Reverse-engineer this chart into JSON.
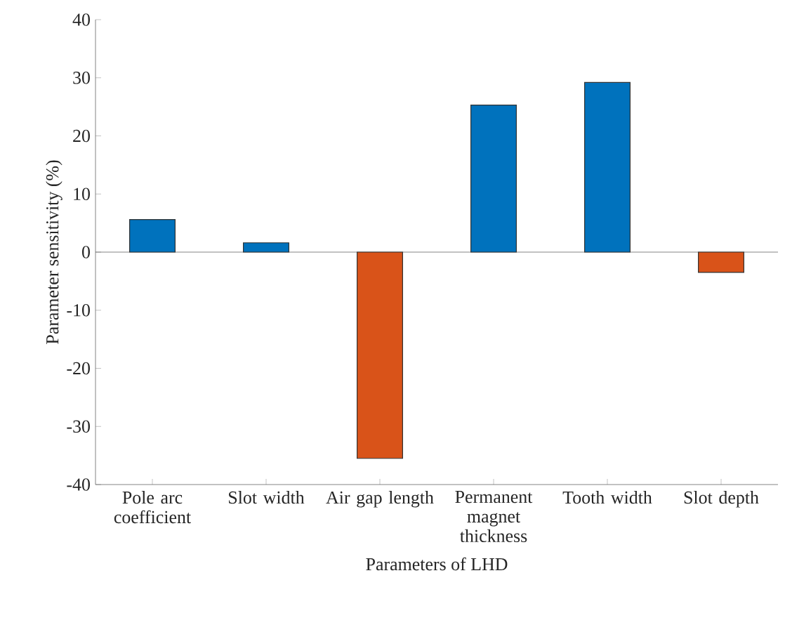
{
  "chart_data": {
    "type": "bar",
    "categories": [
      "Pole arc coefficient",
      "Slot width",
      "Air gap length",
      "Permanent magnet thickness",
      "Tooth width",
      "Slot depth"
    ],
    "values": [
      5.6,
      1.6,
      -35.5,
      25.3,
      29.2,
      -3.5
    ],
    "colors": [
      "#0072bd",
      "#0072bd",
      "#d95319",
      "#0072bd",
      "#0072bd",
      "#d95319"
    ],
    "ylim": [
      -40,
      40
    ],
    "yticks": [
      -40,
      -30,
      -20,
      -10,
      0,
      10,
      20,
      30,
      40
    ],
    "xlabel": "Parameters of LHD",
    "ylabel": "Parameter sensitivity (%)"
  }
}
